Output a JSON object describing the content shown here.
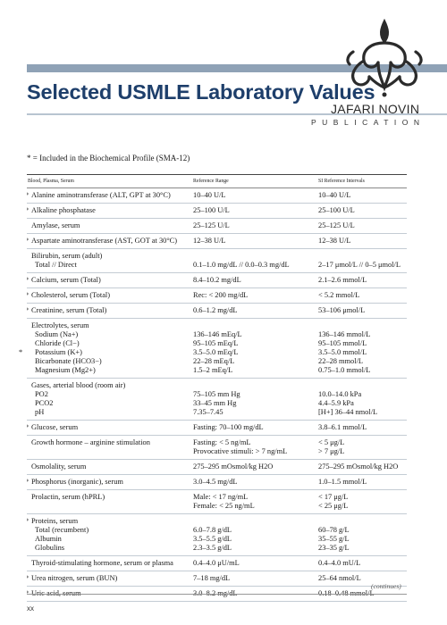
{
  "header": {
    "title": "Selected USMLE Laboratory Values",
    "logo_name": "JAFARI NOVIN",
    "logo_sub": "PUBLICATION"
  },
  "note": "* = Included in the Biochemical Profile (SMA-12)",
  "table": {
    "headers": [
      "Blood, Plasma, Serum",
      "Reference Range",
      "SI Reference Intervals"
    ],
    "rows": [
      {
        "star": "*",
        "name": [
          "Alanine aminotransferase (ALT, GPT at 30°C)"
        ],
        "ref": [
          "10–40 U/L"
        ],
        "si": [
          "10–40 U/L"
        ]
      },
      {
        "star": "*",
        "name": [
          "Alkaline phosphatase"
        ],
        "ref": [
          "25–100 U/L"
        ],
        "si": [
          "25–100 U/L"
        ]
      },
      {
        "star": "",
        "name": [
          "Amylase, serum"
        ],
        "ref": [
          "25–125 U/L"
        ],
        "si": [
          "25–125 U/L"
        ]
      },
      {
        "star": "*",
        "name": [
          "Aspartate aminotransferase (AST, GOT at 30°C)"
        ],
        "ref": [
          "12–38 U/L"
        ],
        "si": [
          "12–38 U/L"
        ]
      },
      {
        "star": "",
        "name": [
          "Bilirubin, serum (adult)",
          "  Total // Direct"
        ],
        "ref": [
          "",
          "0.1–1.0 mg/dL  //  0.0–0.3 mg/dL"
        ],
        "si": [
          "",
          "2–17 μmol/L  //  0–5 μmol/L"
        ]
      },
      {
        "star": "*",
        "name": [
          "Calcium, serum (Total)"
        ],
        "ref": [
          "8.4–10.2 mg/dL"
        ],
        "si": [
          "2.1–2.6 mmol/L"
        ]
      },
      {
        "star": "*",
        "name": [
          "Cholesterol, serum (Total)"
        ],
        "ref": [
          "Rec: < 200 mg/dL"
        ],
        "si": [
          "< 5.2 mmol/L"
        ]
      },
      {
        "star": "*",
        "name": [
          "Creatinine, serum (Total)"
        ],
        "ref": [
          "0.6–1.2 mg/dL"
        ],
        "si": [
          "53–106 μmol/L"
        ]
      },
      {
        "star": "",
        "name": [
          "Electrolytes, serum",
          "  Sodium (Na+)",
          "  Chloride (Cl−)",
          "  Potassium (K+)",
          "  Bicarbonate (HCO3−)",
          "  Magnesium (Mg2+)"
        ],
        "ref": [
          "",
          "136–146 mEq/L",
          "95–105 mEq/L",
          "3.5–5.0 mEq/L",
          "22–28 mEq/L",
          "1.5–2 mEq/L"
        ],
        "si": [
          "",
          "136–146 mmol/L",
          "95–105 mmol/L",
          "3.5–5.0 mmol/L",
          "22–28 mmol/L",
          "0.75–1.0 mmol/L"
        ],
        "star_line": 3
      },
      {
        "star": "",
        "name": [
          "Gases, arterial blood (room air)",
          "  PO2",
          "  PCO2",
          "  pH"
        ],
        "ref": [
          "",
          "75–105 mm Hg",
          "33–45 mm Hg",
          "7.35–7.45"
        ],
        "si": [
          "",
          "10.0–14.0 kPa",
          "4.4–5.9 kPa",
          "[H+] 36–44 nmol/L"
        ]
      },
      {
        "star": "*",
        "name": [
          "Glucose, serum"
        ],
        "ref": [
          "Fasting: 70–100 mg/dL"
        ],
        "si": [
          "3.8–6.1 mmol/L"
        ]
      },
      {
        "star": "",
        "name": [
          "Growth hormone – arginine stimulation"
        ],
        "ref": [
          "Fasting: < 5 ng/mL",
          "Provocative stimuli: > 7 ng/mL"
        ],
        "si": [
          "< 5 μg/L",
          "> 7 μg/L"
        ]
      },
      {
        "star": "",
        "name": [
          "Osmolality, serum"
        ],
        "ref": [
          "275–295 mOsmol/kg H2O"
        ],
        "si": [
          "275–295 mOsmol/kg H2O"
        ]
      },
      {
        "star": "*",
        "name": [
          "Phosphorus (inorganic), serum"
        ],
        "ref": [
          "3.0–4.5 mg/dL"
        ],
        "si": [
          "1.0–1.5 mmol/L"
        ]
      },
      {
        "star": "",
        "name": [
          "Prolactin, serum (hPRL)"
        ],
        "ref": [
          "Male: < 17 ng/mL",
          "Female: < 25 ng/mL"
        ],
        "si": [
          "< 17 μg/L",
          "< 25 μg/L"
        ]
      },
      {
        "star": "*",
        "name": [
          "Proteins, serum",
          "  Total (recumbent)",
          "  Albumin",
          "  Globulins"
        ],
        "ref": [
          "",
          "6.0–7.8 g/dL",
          "3.5–5.5 g/dL",
          "2.3–3.5 g/dL"
        ],
        "si": [
          "",
          "60–78 g/L",
          "35–55 g/L",
          "23–35 g/L"
        ]
      },
      {
        "star": "",
        "name": [
          "Thyroid-stimulating hormone, serum or plasma"
        ],
        "ref": [
          "0.4–4.0 μU/mL"
        ],
        "si": [
          "0.4–4.0 mU/L"
        ]
      },
      {
        "star": "*",
        "name": [
          "Urea nitrogen, serum (BUN)"
        ],
        "ref": [
          "7–18 mg/dL"
        ],
        "si": [
          "25–64 nmol/L"
        ]
      },
      {
        "star": "*",
        "name": [
          "Uric acid, serum"
        ],
        "ref": [
          "3.0–8.2 mg/dL"
        ],
        "si": [
          "0.18–0.48 mmol/L"
        ]
      }
    ]
  },
  "footer": {
    "continues": "(continues)",
    "page": "xx"
  }
}
